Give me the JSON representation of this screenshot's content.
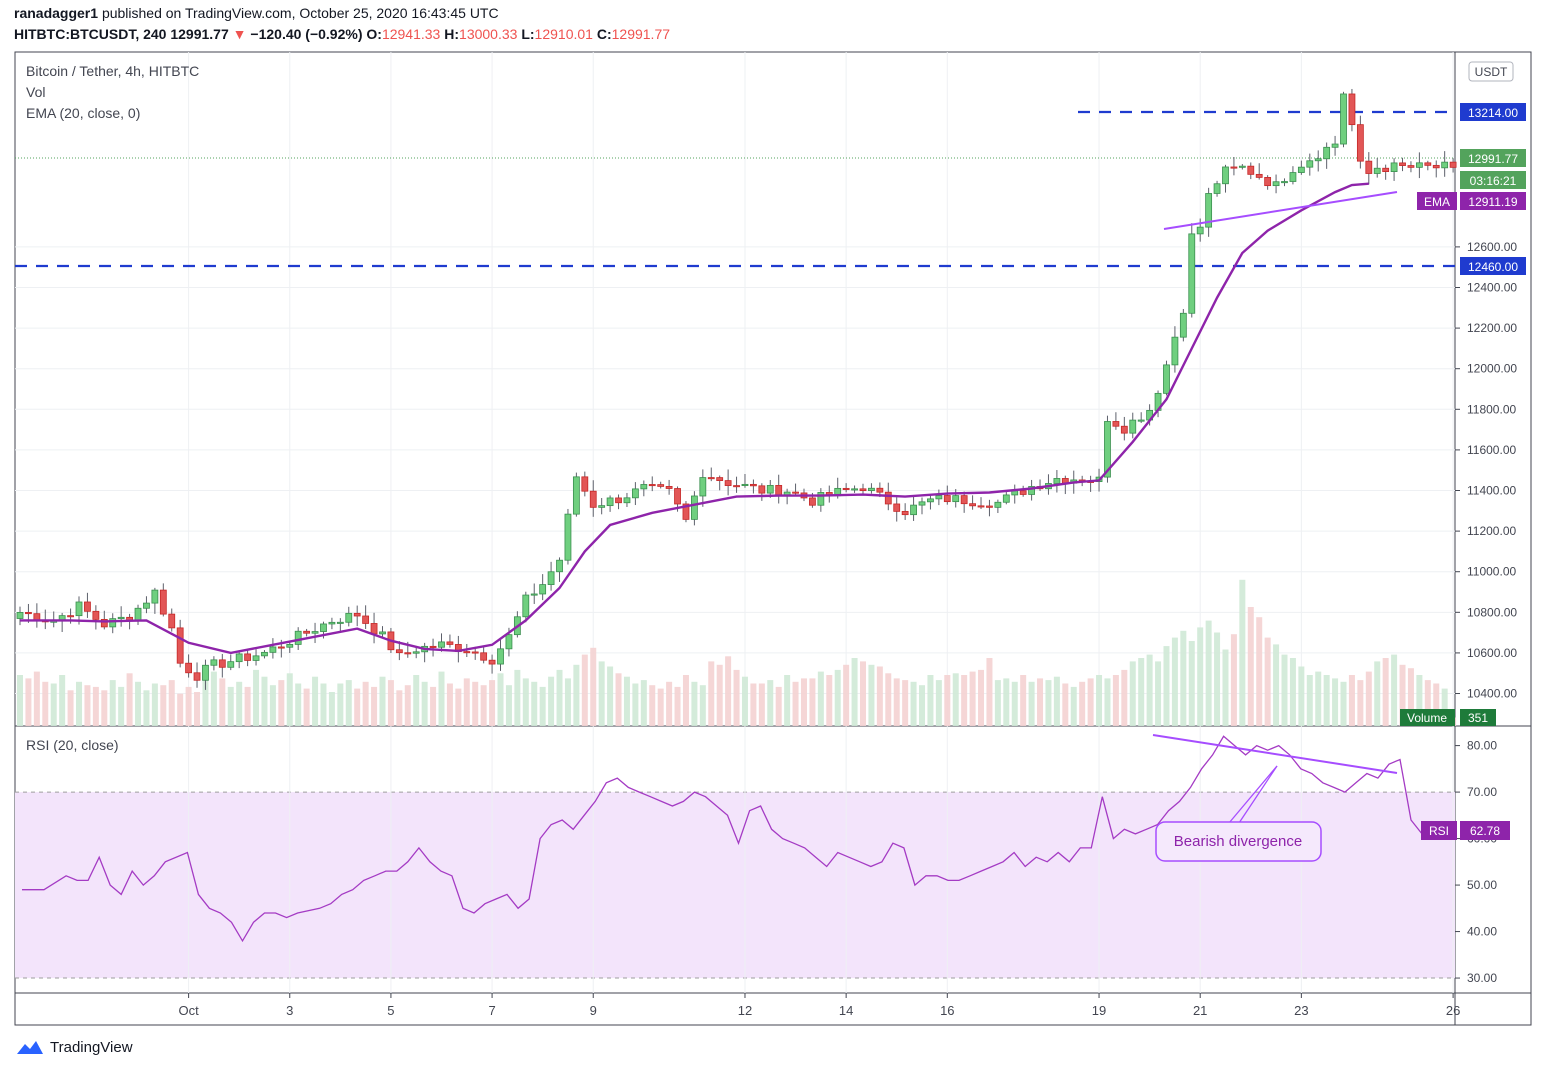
{
  "header": {
    "publisher": "ranadagger1",
    "published_text": "published on TradingView.com, October 25, 2020 16:43:45 UTC",
    "symbol": "HITBTC:BTCUSDT, 240",
    "last": "12991.77",
    "change_arrow": "▼",
    "change": "−120.40 (−0.92%)",
    "o_label": "O:",
    "o": "12941.33",
    "h_label": "H:",
    "h": "13000.33",
    "l_label": "L:",
    "l": "12910.01",
    "c_label": "C:",
    "c": "12991.77"
  },
  "legend": {
    "main": "Bitcoin / Tether, 4h, HITBTC",
    "vol": "Vol",
    "ema": "EMA (20, close, 0)",
    "rsi": "RSI (20, close)"
  },
  "footer": {
    "brand": "TradingView",
    "logo_icon": "tradingview-logo-icon"
  },
  "chart_data": {
    "type": "candlestick",
    "currency": "USDT",
    "price_axis": {
      "range": [
        10240,
        13560
      ],
      "ticks": [
        "10400.00",
        "10600.00",
        "10800.00",
        "11000.00",
        "11200.00",
        "11400.00",
        "11600.00",
        "11800.00",
        "12000.00",
        "12200.00",
        "12400.00",
        "12600.00"
      ]
    },
    "x_ticks": [
      {
        "label": "Oct",
        "bar": 20
      },
      {
        "label": "3",
        "bar": 32
      },
      {
        "label": "5",
        "bar": 44
      },
      {
        "label": "7",
        "bar": 56
      },
      {
        "label": "9",
        "bar": 68
      },
      {
        "label": "12",
        "bar": 86
      },
      {
        "label": "14",
        "bar": 98
      },
      {
        "label": "16",
        "bar": 110
      },
      {
        "label": "19",
        "bar": 128
      },
      {
        "label": "21",
        "bar": 140
      },
      {
        "label": "23",
        "bar": 152
      },
      {
        "label": "26",
        "bar": 170
      }
    ],
    "price_points": [
      [
        0,
        10800
      ],
      [
        4,
        10760
      ],
      [
        7,
        10830
      ],
      [
        10,
        10740
      ],
      [
        13,
        10780
      ],
      [
        16,
        10900
      ],
      [
        18,
        10720
      ],
      [
        19,
        10550
      ],
      [
        21,
        10490
      ],
      [
        23,
        10540
      ],
      [
        26,
        10570
      ],
      [
        29,
        10600
      ],
      [
        31,
        10640
      ],
      [
        34,
        10700
      ],
      [
        37,
        10760
      ],
      [
        40,
        10790
      ],
      [
        43,
        10680
      ],
      [
        45,
        10580
      ],
      [
        47,
        10620
      ],
      [
        50,
        10640
      ],
      [
        53,
        10620
      ],
      [
        56,
        10570
      ],
      [
        58,
        10680
      ],
      [
        60,
        10860
      ],
      [
        62,
        10940
      ],
      [
        64,
        11060
      ],
      [
        66,
        11470
      ],
      [
        68,
        11330
      ],
      [
        71,
        11360
      ],
      [
        74,
        11410
      ],
      [
        77,
        11390
      ],
      [
        79,
        11250
      ],
      [
        81,
        11490
      ],
      [
        84,
        11440
      ],
      [
        88,
        11400
      ],
      [
        91,
        11400
      ],
      [
        94,
        11350
      ],
      [
        97,
        11390
      ],
      [
        100,
        11420
      ],
      [
        102,
        11370
      ],
      [
        105,
        11300
      ],
      [
        108,
        11350
      ],
      [
        110,
        11360
      ],
      [
        113,
        11350
      ],
      [
        116,
        11340
      ],
      [
        120,
        11420
      ],
      [
        123,
        11460
      ],
      [
        126,
        11460
      ],
      [
        128,
        11450
      ],
      [
        129,
        11760
      ],
      [
        131,
        11710
      ],
      [
        134,
        11800
      ],
      [
        135,
        11900
      ],
      [
        136,
        12020
      ],
      [
        138,
        12300
      ],
      [
        139,
        12650
      ],
      [
        140,
        12700
      ],
      [
        141,
        12850
      ],
      [
        142,
        12920
      ],
      [
        143,
        12970
      ],
      [
        145,
        12990
      ],
      [
        147,
        12950
      ],
      [
        149,
        12900
      ],
      [
        151,
        12990
      ],
      [
        152,
        13010
      ],
      [
        154,
        13060
      ],
      [
        156,
        13110
      ],
      [
        157,
        13360
      ],
      [
        158,
        13200
      ],
      [
        159,
        13000
      ],
      [
        160,
        12960
      ],
      [
        161,
        12991.77
      ]
    ],
    "ema_points": [
      [
        0,
        10760
      ],
      [
        6,
        10760
      ],
      [
        10,
        10755
      ],
      [
        15,
        10760
      ],
      [
        20,
        10650
      ],
      [
        25,
        10600
      ],
      [
        30,
        10640
      ],
      [
        35,
        10680
      ],
      [
        40,
        10720
      ],
      [
        44,
        10660
      ],
      [
        48,
        10620
      ],
      [
        52,
        10610
      ],
      [
        56,
        10640
      ],
      [
        60,
        10760
      ],
      [
        64,
        10920
      ],
      [
        67,
        11100
      ],
      [
        70,
        11230
      ],
      [
        75,
        11290
      ],
      [
        80,
        11330
      ],
      [
        85,
        11370
      ],
      [
        90,
        11375
      ],
      [
        95,
        11375
      ],
      [
        100,
        11380
      ],
      [
        105,
        11370
      ],
      [
        110,
        11385
      ],
      [
        115,
        11390
      ],
      [
        120,
        11410
      ],
      [
        125,
        11440
      ],
      [
        128,
        11450
      ],
      [
        132,
        11640
      ],
      [
        136,
        11850
      ],
      [
        139,
        12100
      ],
      [
        142,
        12350
      ],
      [
        145,
        12570
      ],
      [
        148,
        12680
      ],
      [
        152,
        12780
      ],
      [
        156,
        12870
      ],
      [
        158,
        12905
      ],
      [
        160,
        12911.19
      ]
    ],
    "volume_range": [
      0,
      1000
    ],
    "volume": [
      300,
      280,
      320,
      260,
      250,
      300,
      210,
      260,
      240,
      230,
      210,
      270,
      230,
      310,
      260,
      210,
      250,
      240,
      270,
      190,
      230,
      200,
      270,
      320,
      280,
      230,
      260,
      230,
      330,
      290,
      240,
      270,
      310,
      250,
      220,
      290,
      250,
      200,
      250,
      270,
      220,
      260,
      230,
      290,
      270,
      210,
      240,
      300,
      260,
      230,
      320,
      250,
      220,
      280,
      260,
      240,
      270,
      310,
      240,
      330,
      280,
      260,
      230,
      290,
      330,
      280,
      360,
      420,
      460,
      380,
      350,
      310,
      290,
      250,
      270,
      240,
      220,
      260,
      230,
      300,
      260,
      240,
      380,
      360,
      410,
      330,
      290,
      250,
      250,
      270,
      230,
      300,
      260,
      280,
      280,
      320,
      300,
      330,
      360,
      400,
      380,
      360,
      350,
      310,
      280,
      270,
      260,
      240,
      300,
      270,
      300,
      310,
      300,
      320,
      330,
      400,
      270,
      280,
      260,
      300,
      260,
      280,
      270,
      290,
      250,
      230,
      260,
      280,
      300,
      280,
      300,
      330,
      380,
      400,
      420,
      380,
      470,
      520,
      560,
      500,
      580,
      620,
      550,
      450,
      540,
      860,
      700,
      640,
      520,
      480,
      420,
      400,
      350,
      300,
      320,
      300,
      280,
      260,
      300,
      270,
      320,
      380,
      400,
      420,
      360,
      340,
      300,
      270,
      250,
      220,
      50
    ],
    "rsi_axis": {
      "range": [
        27,
        84
      ],
      "ticks": [
        "80.00",
        "70.00",
        "60.00",
        "50.00",
        "40.00",
        "30.00"
      ],
      "overbought": 70,
      "oversold": 30
    },
    "rsi_points": [
      [
        0,
        49
      ],
      [
        2,
        49
      ],
      [
        4,
        52
      ],
      [
        5,
        51
      ],
      [
        6,
        51
      ],
      [
        7,
        56
      ],
      [
        8,
        50
      ],
      [
        9,
        48
      ],
      [
        10,
        53
      ],
      [
        11,
        50
      ],
      [
        12,
        52
      ],
      [
        13,
        55
      ],
      [
        15,
        57
      ],
      [
        16,
        48
      ],
      [
        17,
        45
      ],
      [
        18,
        44
      ],
      [
        19,
        42
      ],
      [
        20,
        38
      ],
      [
        21,
        42
      ],
      [
        22,
        44
      ],
      [
        23,
        44
      ],
      [
        24,
        43
      ],
      [
        25,
        44
      ],
      [
        27,
        45
      ],
      [
        28,
        46
      ],
      [
        29,
        48
      ],
      [
        30,
        49
      ],
      [
        31,
        51
      ],
      [
        32,
        52
      ],
      [
        33,
        53
      ],
      [
        34,
        53
      ],
      [
        35,
        55
      ],
      [
        36,
        58
      ],
      [
        37,
        55
      ],
      [
        38,
        53
      ],
      [
        39,
        52
      ],
      [
        40,
        45
      ],
      [
        41,
        44
      ],
      [
        42,
        46
      ],
      [
        43,
        47
      ],
      [
        44,
        48
      ],
      [
        45,
        45
      ],
      [
        46,
        47
      ],
      [
        47,
        60
      ],
      [
        48,
        63
      ],
      [
        49,
        64
      ],
      [
        50,
        62
      ],
      [
        51,
        65
      ],
      [
        52,
        68
      ],
      [
        53,
        72
      ],
      [
        54,
        73
      ],
      [
        55,
        71
      ],
      [
        56,
        70
      ],
      [
        57,
        69
      ],
      [
        58,
        68
      ],
      [
        59,
        67
      ],
      [
        60,
        68
      ],
      [
        61,
        70
      ],
      [
        62,
        69
      ],
      [
        63,
        67
      ],
      [
        64,
        65
      ],
      [
        65,
        59
      ],
      [
        66,
        66
      ],
      [
        67,
        67
      ],
      [
        68,
        62
      ],
      [
        69,
        60
      ],
      [
        70,
        59
      ],
      [
        71,
        58
      ],
      [
        72,
        56
      ],
      [
        73,
        54
      ],
      [
        74,
        57
      ],
      [
        75,
        56
      ],
      [
        76,
        55
      ],
      [
        77,
        54
      ],
      [
        78,
        55
      ],
      [
        79,
        59
      ],
      [
        80,
        58
      ],
      [
        81,
        50
      ],
      [
        82,
        52
      ],
      [
        83,
        52
      ],
      [
        84,
        51
      ],
      [
        85,
        51
      ],
      [
        86,
        52
      ],
      [
        87,
        53
      ],
      [
        88,
        54
      ],
      [
        89,
        55
      ],
      [
        90,
        57
      ],
      [
        91,
        54
      ],
      [
        92,
        56
      ],
      [
        93,
        55
      ],
      [
        94,
        57
      ],
      [
        95,
        55
      ],
      [
        96,
        58
      ],
      [
        97,
        58
      ],
      [
        98,
        69
      ],
      [
        99,
        60
      ],
      [
        100,
        62
      ],
      [
        101,
        61
      ],
      [
        102,
        62
      ],
      [
        103,
        63
      ],
      [
        104,
        66
      ],
      [
        105,
        68
      ],
      [
        106,
        71
      ],
      [
        107,
        75
      ],
      [
        108,
        78
      ],
      [
        109,
        82
      ],
      [
        110,
        80
      ],
      [
        111,
        78
      ],
      [
        112,
        80
      ],
      [
        113,
        79
      ],
      [
        114,
        80
      ],
      [
        115,
        78
      ],
      [
        116,
        75
      ],
      [
        117,
        74
      ],
      [
        118,
        72
      ],
      [
        119,
        71
      ],
      [
        120,
        70
      ],
      [
        121,
        72
      ],
      [
        122,
        74
      ],
      [
        123,
        73
      ],
      [
        124,
        76
      ],
      [
        125,
        77
      ],
      [
        126,
        64
      ],
      [
        127,
        61
      ],
      [
        128,
        60
      ],
      [
        129,
        61
      ],
      [
        130,
        62.78
      ]
    ]
  },
  "price_labels": {
    "currency_badge": "USDT",
    "resistance": "13214.00",
    "last_price": "12991.77",
    "countdown": "03:16:21",
    "ema_tag": "EMA",
    "ema_value": "12911.19",
    "support": "12460.00",
    "volume_tag": "Volume",
    "volume_value": "351",
    "rsi_tag": "RSI",
    "rsi_value": "62.78"
  },
  "annotations": {
    "divergence": "Bearish divergence"
  },
  "colors": {
    "up": "#26a69a",
    "down": "#ef5350",
    "ema": "#8e24aa",
    "trend": "#a64dff",
    "levels": "#1f3bcf",
    "rsi_fill": "#f3e4fb",
    "last": "#53a35c"
  }
}
